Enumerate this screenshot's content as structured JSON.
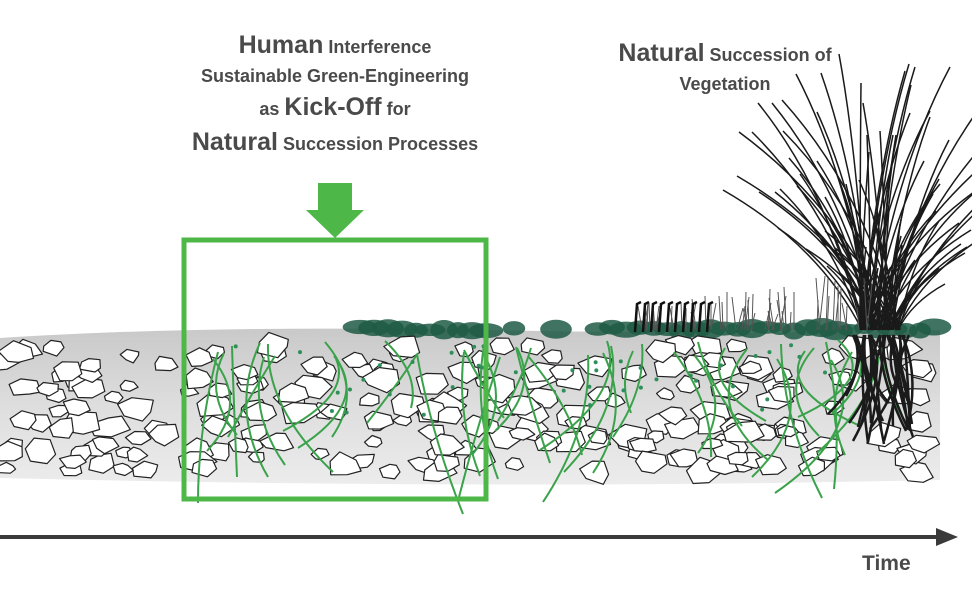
{
  "left_caption": {
    "line1": {
      "bold": "Human",
      "rest": " Interference"
    },
    "line2": "Sustainable Green-Engineering",
    "line3": {
      "pre": "as ",
      "bold": "Kick-Off",
      "rest": " for"
    },
    "line4": {
      "bold": "Natural",
      "rest": " Succession Processes"
    }
  },
  "right_caption": {
    "line1": {
      "bold": "Natural",
      "rest": " Succession of"
    },
    "line2": "Vegetation"
  },
  "axis_label": "Time",
  "colors": {
    "frame_green": "#4db848",
    "root_green": "#3aa24a",
    "moss": "#1f5a45",
    "ground": "#d6d6d6",
    "axis": "#3a3a3a"
  }
}
